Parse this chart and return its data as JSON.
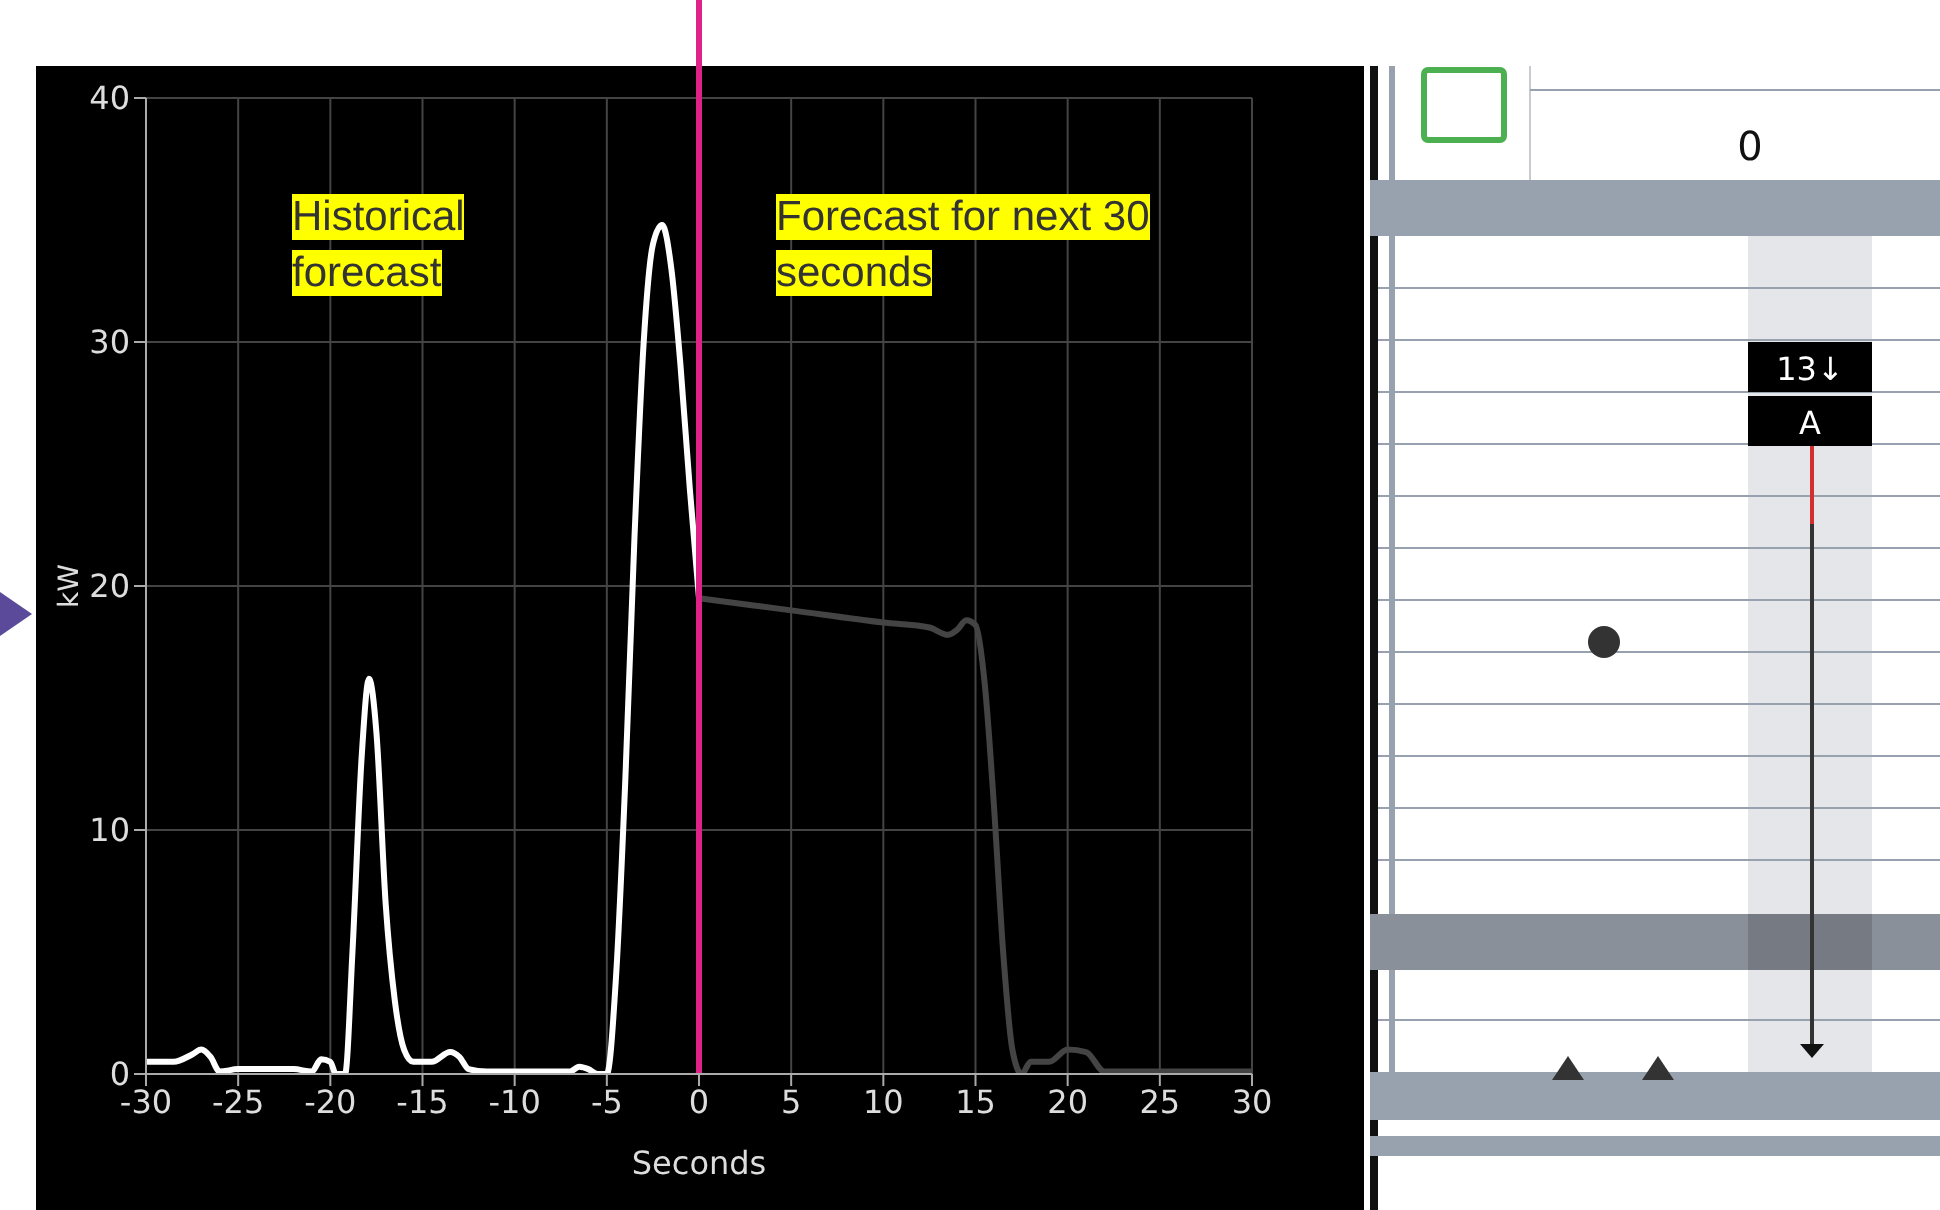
{
  "chart_data": {
    "type": "line",
    "xlabel": "Seconds",
    "ylabel": "kW",
    "xlim": [
      -30,
      30
    ],
    "xticks": [
      -30,
      -25,
      -20,
      -15,
      -10,
      -5,
      0,
      5,
      10,
      15,
      20,
      25,
      30
    ],
    "ylim": [
      0,
      40
    ],
    "yticks": [
      0,
      10,
      20,
      30,
      40
    ],
    "grid": true,
    "marker": "none",
    "line_style": "solid",
    "series": [
      {
        "color": "#ffffff",
        "x": [
          -30,
          -28.5,
          -27.5,
          -27,
          -26.5,
          -26,
          -25,
          -22,
          -21,
          -20.5,
          -20,
          -19.7,
          -19.2,
          -18.8,
          -18.3,
          -17.9,
          -17.5,
          -17,
          -16.5,
          -16,
          -15.5,
          -14.5,
          -13.5,
          -13,
          -12.5,
          -11.5,
          -7,
          -6.5,
          -6,
          -5.5,
          -5,
          -4.5,
          -4,
          -3.5,
          -3,
          -2.5,
          -2,
          -1.5,
          -1,
          -0.5,
          0
        ],
        "values": [
          0.5,
          0.5,
          0.8,
          1,
          0.7,
          0.1,
          0.2,
          0.2,
          0.1,
          0.6,
          0.5,
          0,
          0,
          5,
          13,
          16.2,
          14,
          7,
          3,
          1,
          0.5,
          0.5,
          0.9,
          0.7,
          0.2,
          0.1,
          0.1,
          0.3,
          0.2,
          0,
          0,
          4,
          12,
          22,
          30,
          34,
          34.8,
          33,
          29,
          24,
          19.5
        ]
      },
      {
        "color": "#444444",
        "x": [
          0,
          5,
          10,
          12.5,
          13.5,
          14,
          14.5,
          15,
          15.5,
          16,
          16.5,
          17,
          17.5,
          18,
          19,
          20,
          21,
          22,
          23,
          30
        ],
        "values": [
          19.5,
          19,
          18.5,
          18.3,
          18,
          18.2,
          18.6,
          18.4,
          16,
          11,
          5,
          1,
          0,
          0.5,
          0.5,
          1,
          0.9,
          0.1,
          0.1,
          0.1
        ]
      }
    ],
    "ref_lines": [
      {
        "axis": "x",
        "value": 0,
        "color": "#e0218a"
      }
    ],
    "annotations": [
      "Historical forecast",
      "Forecast for next 30 seconds",
      "0",
      "13↓",
      "A"
    ]
  }
}
